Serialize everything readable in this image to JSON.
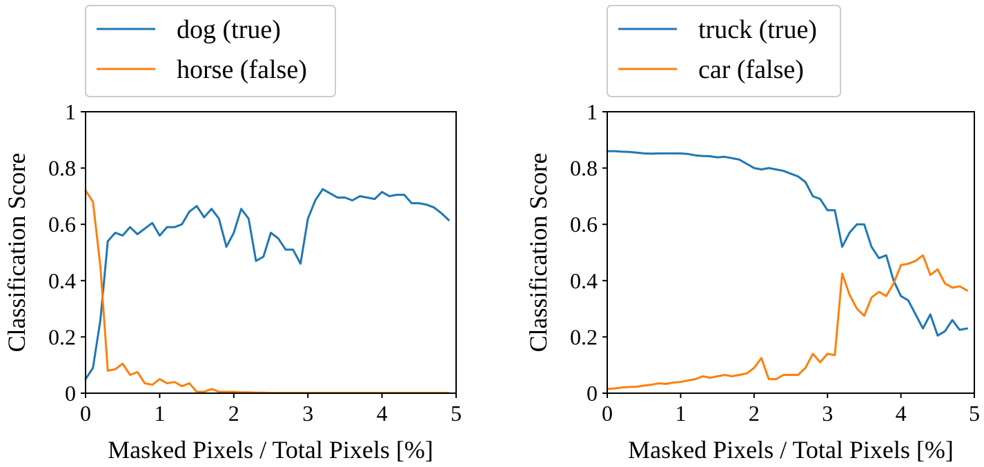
{
  "colors": {
    "series_a": "#1f77b4",
    "series_b": "#ff7f0e",
    "frame": "#000000",
    "legend_border": "#cccccc"
  },
  "chart_data": [
    {
      "type": "line",
      "xlabel": "Masked Pixels / Total Pixels [%]",
      "ylabel": "Classification Score",
      "xlim": [
        0,
        5
      ],
      "ylim": [
        0,
        1
      ],
      "xticks": [
        0,
        1,
        2,
        3,
        4,
        5
      ],
      "xtick_labels": [
        "0",
        "1",
        "2",
        "3",
        "4",
        "5"
      ],
      "yticks": [
        0,
        0.2,
        0.4,
        0.6,
        0.8,
        1
      ],
      "ytick_labels": [
        "0",
        "0.2",
        "0.4",
        "0.6",
        "0.8",
        "1"
      ],
      "legend_position": "above-left",
      "x": [
        0,
        0.1,
        0.2,
        0.3,
        0.4,
        0.5,
        0.6,
        0.7,
        0.8,
        0.9,
        1.0,
        1.1,
        1.2,
        1.3,
        1.4,
        1.5,
        1.6,
        1.7,
        1.8,
        1.9,
        2.0,
        2.1,
        2.2,
        2.3,
        2.4,
        2.5,
        2.6,
        2.7,
        2.8,
        2.9,
        3.0,
        3.1,
        3.2,
        3.3,
        3.4,
        3.5,
        3.6,
        3.7,
        3.8,
        3.9,
        4.0,
        4.1,
        4.2,
        4.3,
        4.4,
        4.5,
        4.6,
        4.7,
        4.8,
        4.9
      ],
      "series": [
        {
          "name": "dog (true)",
          "color": "#1f77b4",
          "values": [
            0.05,
            0.09,
            0.26,
            0.54,
            0.57,
            0.56,
            0.59,
            0.565,
            0.585,
            0.605,
            0.56,
            0.59,
            0.59,
            0.6,
            0.645,
            0.665,
            0.625,
            0.655,
            0.62,
            0.52,
            0.57,
            0.655,
            0.62,
            0.47,
            0.485,
            0.57,
            0.55,
            0.51,
            0.51,
            0.46,
            0.62,
            0.685,
            0.725,
            0.71,
            0.695,
            0.695,
            0.685,
            0.7,
            0.695,
            0.69,
            0.715,
            0.7,
            0.705,
            0.705,
            0.675,
            0.675,
            0.67,
            0.66,
            0.64,
            0.615
          ]
        },
        {
          "name": "horse (false)",
          "color": "#ff7f0e",
          "values": [
            0.72,
            0.68,
            0.45,
            0.08,
            0.085,
            0.105,
            0.065,
            0.075,
            0.035,
            0.03,
            0.05,
            0.035,
            0.04,
            0.025,
            0.035,
            0.005,
            0.005,
            0.015,
            0.005,
            0.005,
            0.005,
            0.003,
            0.003,
            0.002,
            0.002,
            0.001,
            0.001,
            0.001,
            0.001,
            0.001,
            0.001,
            0.001,
            0.001,
            0.001,
            0.001,
            0.001,
            0.001,
            0.001,
            0.001,
            0.001,
            0.001,
            0.001,
            0.001,
            0.001,
            0.001,
            0.001,
            0.001,
            0.001,
            0.001,
            0.001
          ]
        }
      ]
    },
    {
      "type": "line",
      "xlabel": "Masked Pixels / Total Pixels [%]",
      "ylabel": "Classification Score",
      "xlim": [
        0,
        5
      ],
      "ylim": [
        0,
        1
      ],
      "xticks": [
        0,
        1,
        2,
        3,
        4,
        5
      ],
      "xtick_labels": [
        "0",
        "1",
        "2",
        "3",
        "4",
        "5"
      ],
      "yticks": [
        0,
        0.2,
        0.4,
        0.6,
        0.8,
        1
      ],
      "ytick_labels": [
        "0",
        "0.2",
        "0.4",
        "0.6",
        "0.8",
        "1"
      ],
      "legend_position": "above-left",
      "x": [
        0,
        0.1,
        0.2,
        0.3,
        0.4,
        0.5,
        0.6,
        0.7,
        0.8,
        0.9,
        1.0,
        1.1,
        1.2,
        1.3,
        1.4,
        1.5,
        1.6,
        1.7,
        1.8,
        1.9,
        2.0,
        2.1,
        2.2,
        2.3,
        2.4,
        2.5,
        2.6,
        2.7,
        2.8,
        2.9,
        3.0,
        3.1,
        3.2,
        3.3,
        3.4,
        3.5,
        3.6,
        3.7,
        3.8,
        3.9,
        4.0,
        4.1,
        4.2,
        4.3,
        4.4,
        4.5,
        4.6,
        4.7,
        4.8,
        4.9
      ],
      "series": [
        {
          "name": "truck (true)",
          "color": "#1f77b4",
          "values": [
            0.86,
            0.86,
            0.858,
            0.857,
            0.855,
            0.852,
            0.851,
            0.852,
            0.852,
            0.852,
            0.852,
            0.85,
            0.845,
            0.843,
            0.842,
            0.838,
            0.84,
            0.835,
            0.83,
            0.815,
            0.8,
            0.795,
            0.8,
            0.795,
            0.79,
            0.78,
            0.77,
            0.75,
            0.7,
            0.69,
            0.65,
            0.65,
            0.52,
            0.57,
            0.6,
            0.6,
            0.52,
            0.48,
            0.49,
            0.4,
            0.345,
            0.33,
            0.28,
            0.23,
            0.28,
            0.205,
            0.22,
            0.26,
            0.225,
            0.23
          ]
        },
        {
          "name": "car (false)",
          "color": "#ff7f0e",
          "values": [
            0.015,
            0.017,
            0.02,
            0.022,
            0.023,
            0.027,
            0.03,
            0.035,
            0.033,
            0.038,
            0.04,
            0.045,
            0.05,
            0.06,
            0.055,
            0.06,
            0.065,
            0.06,
            0.065,
            0.07,
            0.09,
            0.125,
            0.05,
            0.05,
            0.065,
            0.065,
            0.065,
            0.09,
            0.14,
            0.11,
            0.14,
            0.135,
            0.425,
            0.35,
            0.3,
            0.275,
            0.34,
            0.36,
            0.345,
            0.39,
            0.455,
            0.46,
            0.47,
            0.49,
            0.42,
            0.44,
            0.39,
            0.375,
            0.38,
            0.365
          ]
        }
      ]
    }
  ]
}
